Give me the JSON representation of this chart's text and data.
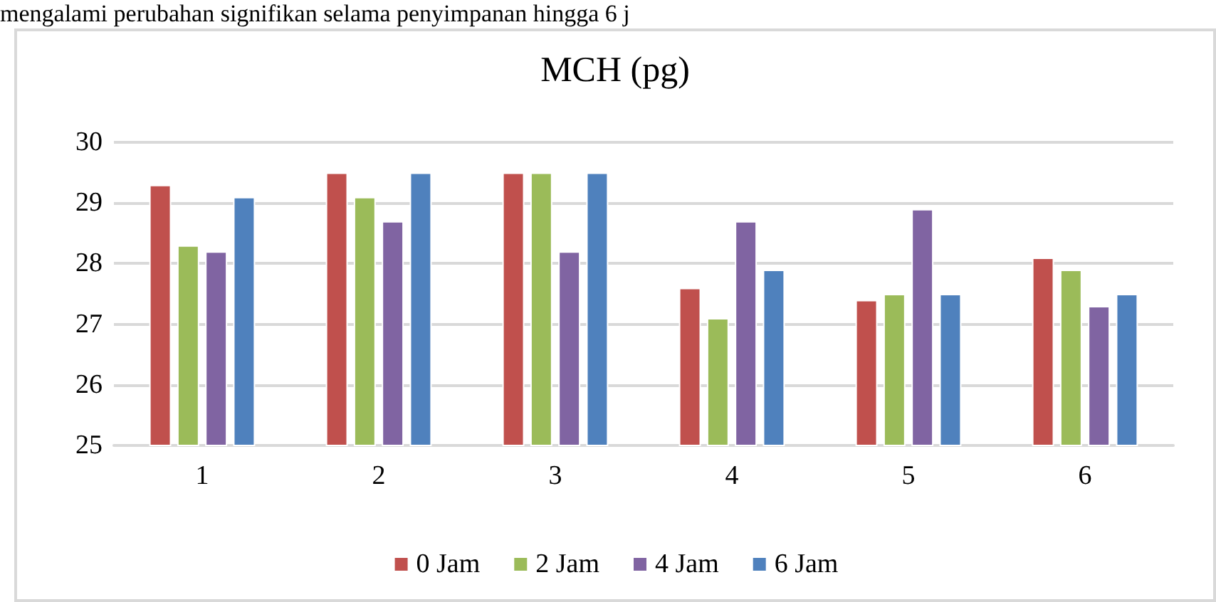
{
  "chart_data": {
    "type": "bar",
    "title": "MCH (pg)",
    "annotations": [
      "mengalami perubahan signifikan selama penyimpanan hingga 6 j"
    ],
    "categories": [
      "1",
      "2",
      "3",
      "4",
      "5",
      "6"
    ],
    "series": [
      {
        "name": "0 Jam",
        "color": "#c0504d",
        "values": [
          29.3,
          29.5,
          29.5,
          27.6,
          27.4,
          28.1
        ]
      },
      {
        "name": "2 Jam",
        "color": "#9bbb59",
        "values": [
          28.3,
          29.1,
          29.5,
          27.1,
          27.5,
          27.9
        ]
      },
      {
        "name": "4 Jam",
        "color": "#8064a2",
        "values": [
          28.2,
          28.7,
          28.2,
          28.7,
          28.9,
          27.3
        ]
      },
      {
        "name": "6 Jam",
        "color": "#4f81bd",
        "values": [
          29.1,
          29.5,
          29.5,
          27.9,
          27.5,
          27.5
        ]
      }
    ],
    "ylim": [
      25,
      30
    ],
    "yticks": [
      25,
      26,
      27,
      28,
      29,
      30
    ],
    "grid": "y",
    "legend": "bottom"
  }
}
